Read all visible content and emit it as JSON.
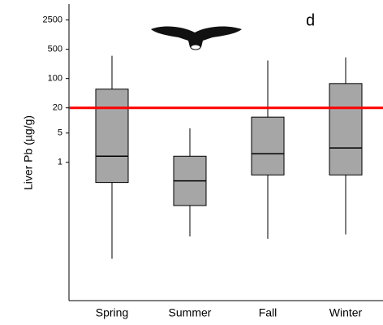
{
  "chart_data": {
    "type": "box",
    "panel_label": "d",
    "y_label": "Liver Pb (µg/g)",
    "categories": [
      "Spring",
      "Summer",
      "Fall",
      "Winter"
    ],
    "boxes": [
      {
        "min": 0.005,
        "q1": 0.33,
        "median": 1.4,
        "q3": 56,
        "max": 350
      },
      {
        "min": 0.017,
        "q1": 0.093,
        "median": 0.36,
        "q3": 1.4,
        "max": 6.5
      },
      {
        "min": 0.015,
        "q1": 0.5,
        "median": 1.6,
        "q3": 12,
        "max": 270
      },
      {
        "min": 0.019,
        "q1": 0.5,
        "median": 2.2,
        "q3": 76,
        "max": 320
      }
    ],
    "color": "#a6a6a6",
    "reference_line": {
      "value": 20,
      "color": "#ff0000"
    },
    "log_scale": true,
    "ylim": [
      0.0005,
      6000
    ],
    "yticks": [
      1,
      5,
      20,
      100,
      500,
      2500
    ]
  }
}
